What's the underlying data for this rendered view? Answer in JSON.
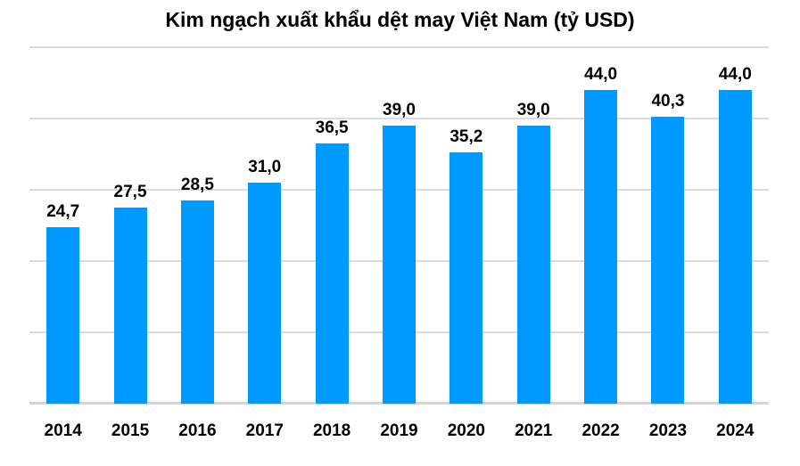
{
  "chart_data": {
    "type": "bar",
    "title": "Kim ngạch xuất khẩu dệt may Việt Nam (tỷ USD)",
    "categories": [
      "2014",
      "2015",
      "2016",
      "2017",
      "2018",
      "2019",
      "2020",
      "2021",
      "2022",
      "2023",
      "2024"
    ],
    "values": [
      24.7,
      27.5,
      28.5,
      31.0,
      36.5,
      39.0,
      35.2,
      39.0,
      44.0,
      40.3,
      44.0
    ],
    "value_labels": [
      "24,7",
      "27,5",
      "28,5",
      "31,0",
      "36,5",
      "39,0",
      "35,2",
      "39,0",
      "44,0",
      "40,3",
      "44,0"
    ],
    "xlabel": "",
    "ylabel": "",
    "ylim": [
      0,
      50
    ],
    "gridline_step": 10,
    "grid": "horizontal-only",
    "legend": "none",
    "y_axis_labels_visible": false,
    "colors": {
      "bar": "#0099FE",
      "gridline": "#DCDCDC",
      "baseline": "#D4D4D4",
      "text": "#000000",
      "background": "#FFFFFF"
    }
  }
}
